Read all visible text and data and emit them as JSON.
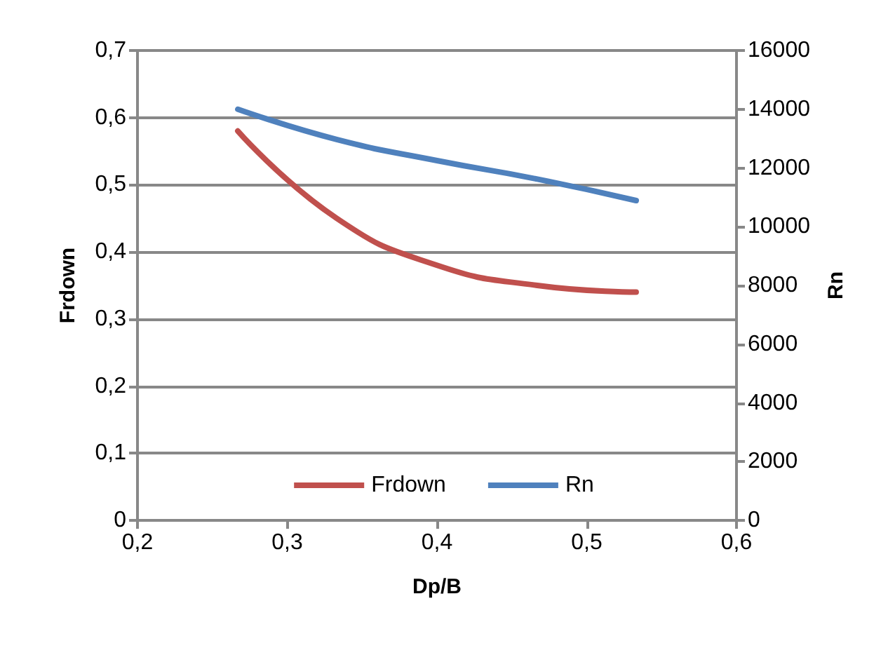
{
  "chart_data": {
    "type": "line",
    "xlabel": "Dp/B",
    "ylabel": "Frdown",
    "y2label": "Rn",
    "x": [
      0.267,
      0.333,
      0.4,
      0.467,
      0.533
    ],
    "series": [
      {
        "name": "Frdown",
        "color": "#c0504d",
        "values": [
          0.58,
          0.45,
          0.38,
          0.35,
          0.34
        ]
      },
      {
        "name": "Rn",
        "color": "#4f81bd",
        "axis": "y2",
        "values": [
          14000,
          12970,
          12250,
          11620,
          10890
        ]
      }
    ],
    "xlim": [
      0.2,
      0.6
    ],
    "xticks": [
      {
        "value": 0.2,
        "label": "0,2"
      },
      {
        "value": 0.3,
        "label": "0,3"
      },
      {
        "value": 0.4,
        "label": "0,4"
      },
      {
        "value": 0.5,
        "label": "0,5"
      },
      {
        "value": 0.6,
        "label": "0,6"
      }
    ],
    "ylim": [
      0,
      0.7
    ],
    "yticks": [
      0,
      {
        "value": 0.1,
        "label": "0,1"
      },
      {
        "value": 0.2,
        "label": "0,2"
      },
      {
        "value": 0.3,
        "label": "0,3"
      },
      {
        "value": 0.4,
        "label": "0,4"
      },
      {
        "value": 0.5,
        "label": "0,5"
      },
      {
        "value": 0.6,
        "label": "0,6"
      },
      {
        "value": 0.7,
        "label": "0,7"
      }
    ],
    "y2lim": [
      0,
      16000
    ],
    "y2ticks": [
      0,
      2000,
      4000,
      6000,
      8000,
      10000,
      12000,
      14000,
      16000
    ],
    "grid": "y",
    "legend": "bottom",
    "marker": "none",
    "line_style": "solid"
  }
}
